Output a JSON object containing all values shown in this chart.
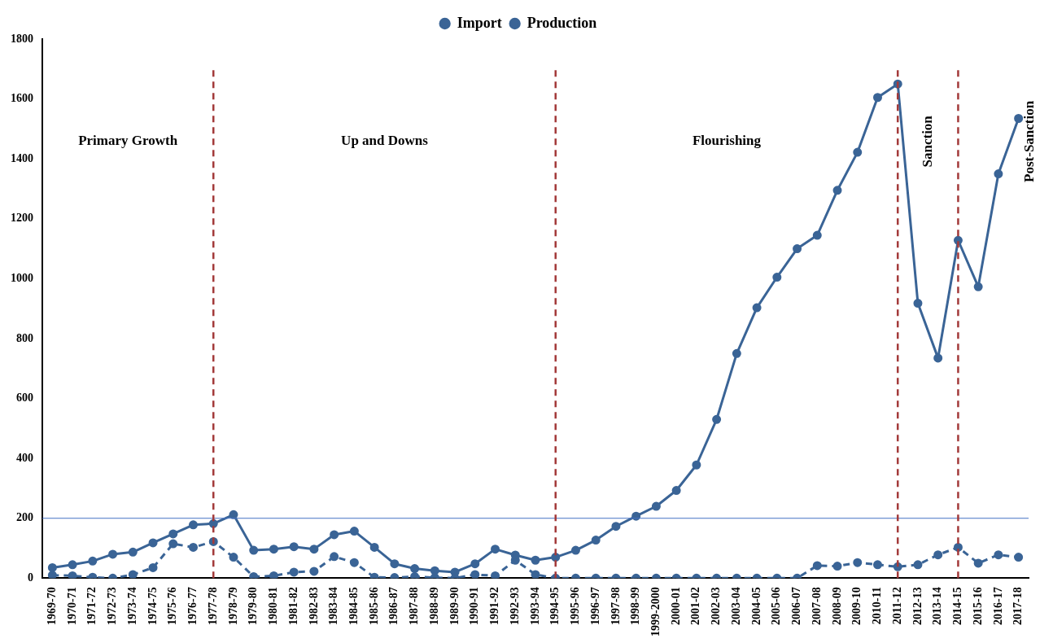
{
  "chart_data": {
    "type": "line",
    "categories": [
      "1969-70",
      "1970-71",
      "1971-72",
      "1972-73",
      "1973-74",
      "1974-75",
      "1975-76",
      "1976-77",
      "1977-78",
      "1978-79",
      "1979-80",
      "1980-81",
      "1981-82",
      "1982-83",
      "1983-84",
      "1984-85",
      "1985-86",
      "1986-87",
      "1987-88",
      "1988-89",
      "1989-90",
      "1990-91",
      "1991-92",
      "1992-93",
      "1993-94",
      "1994-95",
      "1995-96",
      "1996-97",
      "1997-98",
      "1998-99",
      "1999-2000",
      "2000-01",
      "2001-02",
      "2002-03",
      "2003-04",
      "2004-05",
      "2005-06",
      "2006-07",
      "2007-08",
      "2008-09",
      "2009-10",
      "2010-11",
      "2011-12",
      "2012-13",
      "2013-14",
      "2014-15",
      "2015-16",
      "2016-17",
      "2017-18"
    ],
    "series": [
      {
        "name": "Import",
        "color": "#3a6496",
        "line_style": "dashed",
        "values": [
          10,
          8,
          3,
          0,
          12,
          35,
          115,
          103,
          122,
          70,
          5,
          8,
          20,
          23,
          72,
          52,
          3,
          2,
          5,
          2,
          0,
          12,
          8,
          60,
          12,
          0,
          0,
          0,
          0,
          0,
          0,
          0,
          0,
          0,
          0,
          0,
          0,
          0,
          42,
          40,
          52,
          45,
          38,
          45,
          78,
          103,
          50,
          78,
          70
        ]
      },
      {
        "name": "Production",
        "color": "#3a6496",
        "line_style": "solid",
        "values": [
          35,
          45,
          57,
          80,
          87,
          118,
          148,
          178,
          182,
          212,
          93,
          97,
          105,
          97,
          145,
          157,
          103,
          48,
          32,
          25,
          20,
          48,
          97,
          77,
          60,
          70,
          93,
          127,
          173,
          207,
          240,
          293,
          378,
          530,
          750,
          903,
          1005,
          1100,
          1145,
          1295,
          1422,
          1605,
          1650,
          918,
          735,
          1128,
          973,
          1350,
          1535
        ]
      }
    ],
    "ylim": [
      0,
      1800
    ],
    "yticks": [
      0,
      200,
      400,
      600,
      800,
      1000,
      1200,
      1400,
      1600,
      1800
    ],
    "grid": false,
    "legend": "top",
    "marker": "circle",
    "ref_lines": [
      {
        "axis": "y",
        "value": 200,
        "color": "#4472c4",
        "line_style": "solid"
      },
      {
        "axis": "x",
        "value": "1977-78",
        "color": "#a33a3a",
        "line_style": "dashed"
      },
      {
        "axis": "x",
        "value": "1994-95",
        "color": "#a33a3a",
        "line_style": "dashed"
      },
      {
        "axis": "x",
        "value": "2011-12",
        "color": "#a33a3a",
        "line_style": "dashed"
      },
      {
        "axis": "x",
        "value": "2014-15",
        "color": "#a33a3a",
        "line_style": "dashed"
      }
    ],
    "annotations": [
      "Primary Growth",
      "Up and Downs",
      "Flourishing",
      "Sanction",
      "Post-Sanction"
    ]
  }
}
